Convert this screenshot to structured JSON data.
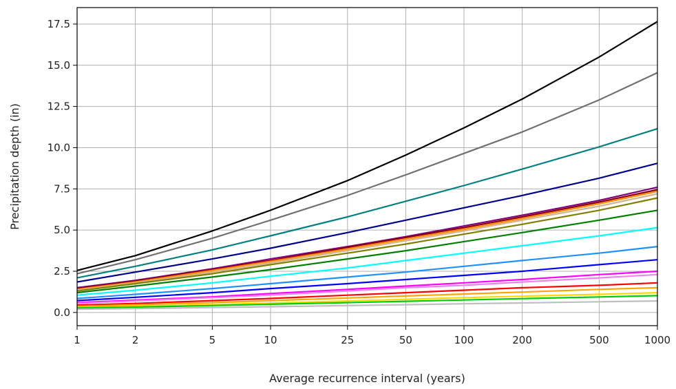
{
  "chart_data": {
    "type": "line",
    "title": "",
    "xlabel": "Average recurrence interval (years)",
    "ylabel": "Precipitation depth (in)",
    "x_scale": "log",
    "x": [
      1,
      2,
      5,
      10,
      25,
      50,
      100,
      200,
      500,
      1000
    ],
    "x_tick_labels": [
      "1",
      "2",
      "5",
      "10",
      "25",
      "50",
      "100",
      "200",
      "500",
      "1000"
    ],
    "xlim": [
      1,
      1000
    ],
    "ylim": [
      -0.8,
      18.5
    ],
    "y_ticks": [
      0.0,
      2.5,
      5.0,
      7.5,
      10.0,
      12.5,
      15.0,
      17.5
    ],
    "y_tick_labels": [
      "0.0",
      "2.5",
      "5.0",
      "7.5",
      "10.0",
      "12.5",
      "15.0",
      "17.5"
    ],
    "grid": true,
    "legend": "none",
    "series": [
      {
        "color": "#000000",
        "values": [
          2.55,
          3.45,
          4.95,
          6.2,
          8.0,
          9.55,
          11.2,
          12.95,
          15.5,
          17.65
        ]
      },
      {
        "color": "#707070",
        "values": [
          2.35,
          3.2,
          4.5,
          5.6,
          7.1,
          8.35,
          9.65,
          10.95,
          12.9,
          14.55
        ]
      },
      {
        "color": "#008080",
        "values": [
          2.1,
          2.8,
          3.8,
          4.65,
          5.8,
          6.75,
          7.7,
          8.7,
          10.05,
          11.15
        ]
      },
      {
        "color": "#00008b",
        "values": [
          1.85,
          2.45,
          3.25,
          3.9,
          4.85,
          5.6,
          6.35,
          7.1,
          8.15,
          9.05
        ]
      },
      {
        "color": "#800080",
        "values": [
          1.5,
          1.95,
          2.65,
          3.25,
          4.0,
          4.6,
          5.25,
          5.9,
          6.8,
          7.6
        ]
      },
      {
        "color": "#8b0000",
        "values": [
          1.45,
          1.9,
          2.6,
          3.15,
          3.95,
          4.55,
          5.15,
          5.8,
          6.7,
          7.45
        ]
      },
      {
        "color": "#ff8c00",
        "values": [
          1.4,
          1.85,
          2.55,
          3.1,
          3.85,
          4.45,
          5.05,
          5.7,
          6.6,
          7.35
        ]
      },
      {
        "color": "#d2b48c",
        "values": [
          1.35,
          1.8,
          2.45,
          3.0,
          3.75,
          4.35,
          4.95,
          5.6,
          6.45,
          7.2
        ]
      },
      {
        "color": "#808000",
        "values": [
          1.3,
          1.75,
          2.35,
          2.9,
          3.6,
          4.15,
          4.75,
          5.35,
          6.2,
          6.95
        ]
      },
      {
        "color": "#008000",
        "values": [
          1.2,
          1.6,
          2.15,
          2.6,
          3.25,
          3.75,
          4.3,
          4.85,
          5.6,
          6.2
        ]
      },
      {
        "color": "#00ffff",
        "values": [
          1.05,
          1.35,
          1.8,
          2.2,
          2.7,
          3.15,
          3.6,
          4.05,
          4.65,
          5.15
        ]
      },
      {
        "color": "#1e90ff",
        "values": [
          0.85,
          1.1,
          1.45,
          1.75,
          2.15,
          2.45,
          2.8,
          3.15,
          3.6,
          4.0
        ]
      },
      {
        "color": "#0000ff",
        "values": [
          0.72,
          0.92,
          1.2,
          1.45,
          1.75,
          2.0,
          2.25,
          2.5,
          2.9,
          3.2
        ]
      },
      {
        "color": "#ff00ff",
        "values": [
          0.6,
          0.75,
          0.95,
          1.15,
          1.4,
          1.6,
          1.8,
          2.0,
          2.3,
          2.5
        ]
      },
      {
        "color": "#ee82ee",
        "values": [
          0.55,
          0.7,
          0.9,
          1.05,
          1.3,
          1.5,
          1.65,
          1.85,
          2.1,
          2.3
        ]
      },
      {
        "color": "#ff0000",
        "values": [
          0.45,
          0.55,
          0.72,
          0.85,
          1.05,
          1.2,
          1.35,
          1.5,
          1.65,
          1.8
        ]
      },
      {
        "color": "#ffa500",
        "values": [
          0.38,
          0.47,
          0.6,
          0.72,
          0.88,
          1.0,
          1.12,
          1.24,
          1.4,
          1.5
        ]
      },
      {
        "color": "#ffd700",
        "values": [
          0.3,
          0.37,
          0.48,
          0.57,
          0.7,
          0.8,
          0.9,
          0.99,
          1.1,
          1.2
        ]
      },
      {
        "color": "#00cd00",
        "values": [
          0.27,
          0.33,
          0.42,
          0.5,
          0.6,
          0.68,
          0.76,
          0.84,
          0.94,
          1.02
        ]
      },
      {
        "color": "#bebebe",
        "values": [
          0.2,
          0.24,
          0.3,
          0.35,
          0.42,
          0.47,
          0.53,
          0.58,
          0.65,
          0.7
        ]
      }
    ]
  }
}
